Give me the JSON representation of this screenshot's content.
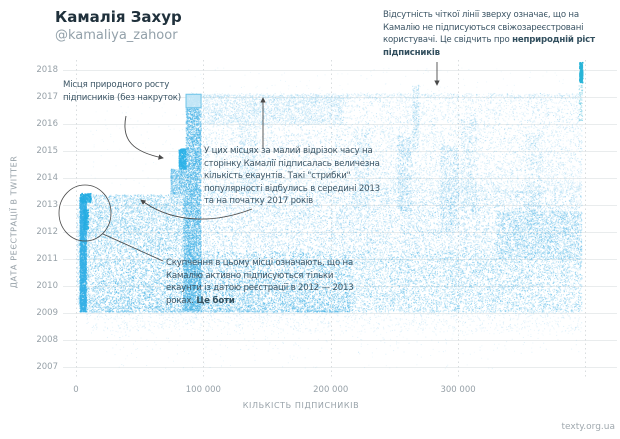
{
  "header": {
    "title": "Камалія Захур",
    "handle": "@kamaliya_zahoor"
  },
  "watermark": "texty.org.ua",
  "annotations": {
    "top_right": {
      "segments": [
        {
          "text": "Відсутність чіткої лінії зверху означає, що на Камалію не підписуються свіжозареєстровані користувачі. Це свідчить про ",
          "bold": false
        },
        {
          "text": "неприродній ріст підписників",
          "bold": true
        }
      ]
    },
    "natural": {
      "segments": [
        {
          "text": "Місця природного росту підписників (без накруток)",
          "bold": false
        }
      ]
    },
    "jumps": {
      "segments": [
        {
          "text": "У цих місцях за малий відрізок часу на сторінку Камалії підписалась величезна кількість екаунтів. Такі \"стрибки\" популярності відбулись в середині 2013 та на початку 2017 років",
          "bold": false
        }
      ]
    },
    "bots": {
      "segments": [
        {
          "text": "Скупчення в цьому місці означають, що на Камалію активно підписуються тільки екаунти із датою реєстрації в 2012 — 2013 роках.  ",
          "bold": false
        },
        {
          "text": "Це боти",
          "bold": true
        }
      ]
    }
  },
  "chart_data": {
    "type": "scatter",
    "title": "Камалія Захур @kamaliya_zahoor — дати реєстрації підписників",
    "xlabel": "КІЛЬКІСТЬ ПІДПИСНИКІВ",
    "ylabel": "ДАТА РЕЄСТРАЦІЇ В TWITTER",
    "x_range": [
      0,
      424000
    ],
    "y_range": [
      2006.8,
      2018.3
    ],
    "x_ticks": [
      {
        "value": 0,
        "label": "0"
      },
      {
        "value": 100000,
        "label": "100 000"
      },
      {
        "value": 200000,
        "label": "200 000"
      },
      {
        "value": 300000,
        "label": "300 000"
      }
    ],
    "x_gridlines": [
      0,
      100000,
      200000,
      300000,
      400000
    ],
    "y_ticks": [
      2018,
      2017,
      2016,
      2015,
      2014,
      2013,
      2012,
      2011,
      2010,
      2009,
      2008,
      2007
    ],
    "grid": {
      "h_color": "#e9eced",
      "v_color": "#d9dddf"
    },
    "max_followers": 397000,
    "density_regions": [
      {
        "name": "right-cloud-upper",
        "f0": 100000,
        "f1": 397000,
        "y0": 2013.5,
        "y1": 2017.1,
        "n": 9000,
        "color": "#85c9ec",
        "alpha": 0.32,
        "size": 1,
        "pow": 1.4
      },
      {
        "name": "right-cloud-mid",
        "f0": 100000,
        "f1": 397000,
        "y0": 2011.3,
        "y1": 2013.5,
        "n": 8000,
        "color": "#6fc0ea",
        "alpha": 0.38,
        "size": 1,
        "pow": 1
      },
      {
        "name": "bottom-band-left",
        "f0": 8000,
        "f1": 215000,
        "y0": 2009.05,
        "y1": 2011.3,
        "n": 9000,
        "color": "#4bb4e6",
        "alpha": 0.5,
        "size": 1,
        "pow": 1.3
      },
      {
        "name": "bottom-band-right",
        "f0": 215000,
        "f1": 397000,
        "y0": 2009.05,
        "y1": 2011.3,
        "n": 6000,
        "color": "#5cbbe8",
        "alpha": 0.42,
        "size": 1,
        "pow": 1
      },
      {
        "name": "left-cloud",
        "f0": 8000,
        "f1": 84000,
        "y0": 2011.3,
        "y1": 2013.4,
        "n": 3500,
        "color": "#5fbce8",
        "alpha": 0.45,
        "size": 1,
        "pow": 1
      },
      {
        "name": "top-2016-2017-left",
        "f0": 86000,
        "f1": 210000,
        "y0": 2016.0,
        "y1": 2017.1,
        "n": 2200,
        "color": "#8ccdee",
        "alpha": 0.35,
        "size": 1,
        "pow": 1
      },
      {
        "name": "top-edge-line",
        "f0": 86000,
        "f1": 397000,
        "y0": 2016.95,
        "y1": 2017.15,
        "n": 700,
        "color": "#90cfee",
        "alpha": 0.3,
        "size": 1,
        "pow": 1
      },
      {
        "name": "below-2009-a",
        "f0": 8000,
        "f1": 397000,
        "y0": 2008.35,
        "y1": 2009.05,
        "n": 1300,
        "color": "#9ad2ef",
        "alpha": 0.3,
        "size": 1,
        "pow": 1.6,
        "fromTop": true
      },
      {
        "name": "below-2009-b",
        "f0": 10000,
        "f1": 397000,
        "y0": 2007.5,
        "y1": 2008.35,
        "n": 260,
        "color": "#9ad2ef",
        "alpha": 0.25,
        "size": 1,
        "pow": 1.5,
        "fromTop": true
      },
      {
        "name": "2007-sparse",
        "f0": 30000,
        "f1": 330000,
        "y0": 2006.95,
        "y1": 2007.5,
        "n": 55,
        "color": "#9ad2ef",
        "alpha": 0.22,
        "size": 1,
        "pow": 1
      },
      {
        "name": "sparse-left-upper",
        "f0": 8000,
        "f1": 84000,
        "y0": 2013.4,
        "y1": 2016.8,
        "n": 90,
        "color": "#9ad2ef",
        "alpha": 0.2,
        "size": 1,
        "pow": 1
      },
      {
        "name": "sparse-top",
        "f0": 86000,
        "f1": 397000,
        "y0": 2017.15,
        "y1": 2018.1,
        "n": 110,
        "color": "#9ad2ef",
        "alpha": 0.2,
        "size": 1,
        "pow": 1
      },
      {
        "name": "band-main",
        "f0": 86000,
        "f1": 98000,
        "y0": 2009.1,
        "y1": 2016.6,
        "n": 4500,
        "color": "#46b2e6",
        "alpha": 0.6,
        "size": 1,
        "pow": 1
      },
      {
        "name": "band-left-edge",
        "f0": 84000,
        "f1": 86000,
        "y0": 2009.1,
        "y1": 2013.4,
        "n": 500,
        "color": "#46b2e6",
        "alpha": 0.5,
        "size": 1,
        "pow": 1
      },
      {
        "name": "band-cap",
        "f0": 86500,
        "f1": 97500,
        "y0": 2016.6,
        "y1": 2017.1,
        "n": 650,
        "color": "#a9dbf3",
        "alpha": 0.75,
        "size": 1,
        "pow": 1
      },
      {
        "name": "band-bulge",
        "f0": 74000,
        "f1": 86000,
        "y0": 2013.4,
        "y1": 2014.35,
        "n": 650,
        "color": "#58b9e8",
        "alpha": 0.55,
        "size": 1,
        "pow": 1
      },
      {
        "name": "band-bright-natural",
        "f0": 80500,
        "f1": 86000,
        "y0": 2014.35,
        "y1": 2015.1,
        "n": 420,
        "color": "#2fb3e8",
        "alpha": 0.85,
        "size": 1.2,
        "pow": 1
      },
      {
        "name": "zero-column",
        "f0": 2600,
        "f1": 7800,
        "y0": 2009.05,
        "y1": 2013.3,
        "n": 2600,
        "color": "#35b0e6",
        "alpha": 0.8,
        "size": 1.1,
        "pow": 1
      },
      {
        "name": "zero-marks-2013",
        "f0": 3000,
        "f1": 11500,
        "y0": 2013.1,
        "y1": 2013.45,
        "n": 230,
        "color": "#25ade2",
        "alpha": 0.85,
        "size": 1.2,
        "pow": 1
      },
      {
        "name": "zero-marks-2012",
        "f0": 5500,
        "f1": 9500,
        "y0": 2012.1,
        "y1": 2012.85,
        "n": 170,
        "color": "#25ade2",
        "alpha": 0.8,
        "size": 1.2,
        "pow": 1
      },
      {
        "name": "zero-sparse",
        "f0": 300,
        "f1": 2600,
        "y0": 2009.3,
        "y1": 2013.2,
        "n": 160,
        "color": "#6fc0ea",
        "alpha": 0.3,
        "size": 1,
        "pow": 1
      },
      {
        "name": "wisp-1",
        "f0": 264000,
        "f1": 269000,
        "y0": 2015.0,
        "y1": 2017.45,
        "n": 240,
        "color": "#7cc6ea",
        "alpha": 0.4,
        "size": 1,
        "pow": 1
      },
      {
        "name": "wisp-2",
        "f0": 252000,
        "f1": 263000,
        "y0": 2012.8,
        "y1": 2015.6,
        "n": 480,
        "color": "#6fc0ea",
        "alpha": 0.42,
        "size": 1,
        "pow": 1
      },
      {
        "name": "wisp-3",
        "f0": 286000,
        "f1": 300000,
        "y0": 2012.0,
        "y1": 2015.2,
        "n": 550,
        "color": "#6fc0ea",
        "alpha": 0.4,
        "size": 1,
        "pow": 1
      },
      {
        "name": "wisp-4",
        "f0": 302000,
        "f1": 314000,
        "y0": 2012.8,
        "y1": 2016.2,
        "n": 380,
        "color": "#7cc6ea",
        "alpha": 0.38,
        "size": 1,
        "pow": 1
      },
      {
        "name": "wisp-5",
        "f0": 352000,
        "f1": 366000,
        "y0": 2012.3,
        "y1": 2015.6,
        "n": 350,
        "color": "#7cc6ea",
        "alpha": 0.38,
        "size": 1,
        "pow": 1
      },
      {
        "name": "wisp-6",
        "f0": 218000,
        "f1": 230000,
        "y0": 2012.8,
        "y1": 2015.8,
        "n": 340,
        "color": "#7cc6ea",
        "alpha": 0.38,
        "size": 1,
        "pow": 1
      },
      {
        "name": "wisp-7",
        "f0": 128000,
        "f1": 142000,
        "y0": 2013.4,
        "y1": 2016.0,
        "n": 400,
        "color": "#7cc6ea",
        "alpha": 0.35,
        "size": 1,
        "pow": 1
      },
      {
        "name": "right-mid-emphasis",
        "f0": 330000,
        "f1": 397000,
        "y0": 2011.0,
        "y1": 2012.8,
        "n": 1600,
        "color": "#58b9e8",
        "alpha": 0.42,
        "size": 1,
        "pow": 1
      },
      {
        "name": "edge-spike-2018",
        "f0": 395000,
        "f1": 397500,
        "y0": 2017.55,
        "y1": 2018.3,
        "n": 240,
        "color": "#2ab5d8",
        "alpha": 0.95,
        "size": 1.3,
        "pow": 1
      },
      {
        "name": "edge-dots",
        "f0": 394500,
        "f1": 397500,
        "y0": 2016.1,
        "y1": 2017.5,
        "n": 70,
        "color": "#4fc0dc",
        "alpha": 0.5,
        "size": 1,
        "pow": 1
      }
    ],
    "cap_outline": {
      "f0": 86000,
      "f1": 97800,
      "y0": 2016.62,
      "y1": 2017.12,
      "stroke": "#6cc3e8",
      "fill": "rgba(214,238,250,0.55)"
    },
    "highlight_circle": {
      "cx_f": 7000,
      "cy_year": 2012.7,
      "note": "ellipse around bot cluster"
    }
  },
  "overlay": {
    "arrow_color": "#4a4a4a"
  }
}
